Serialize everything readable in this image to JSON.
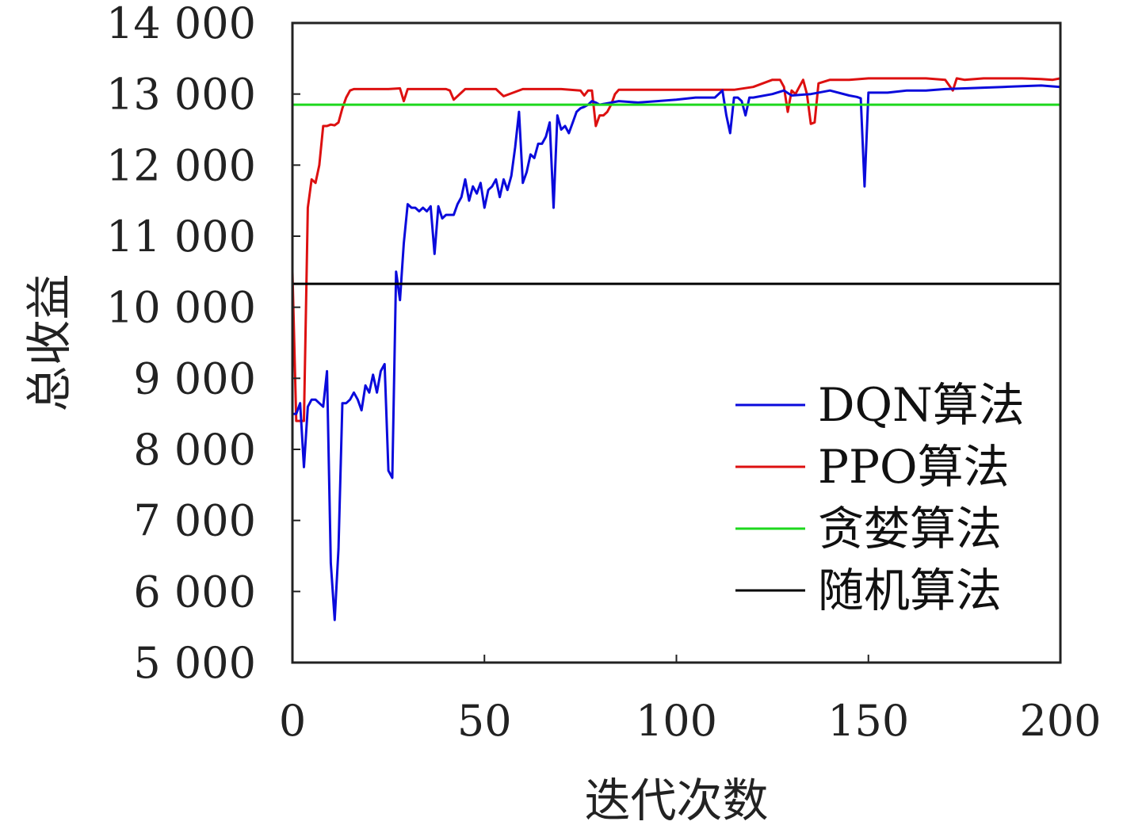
{
  "chart_data": {
    "type": "line",
    "title": "",
    "xlabel": "迭代次数",
    "ylabel": "总收益",
    "xlim": [
      0,
      200
    ],
    "ylim": [
      5000,
      14000
    ],
    "xticks": [
      0,
      50,
      100,
      150,
      200
    ],
    "xtick_labels": [
      "0",
      "50",
      "100",
      "150",
      "200"
    ],
    "yticks": [
      5000,
      6000,
      7000,
      8000,
      9000,
      10000,
      11000,
      12000,
      13000,
      14000
    ],
    "ytick_labels": [
      "5 000",
      "6 000",
      "7 000",
      "8 000",
      "9 000",
      "10 000",
      "11 000",
      "12 000",
      "13 000",
      "14 000"
    ],
    "grid": false,
    "legend_position": "lower-right",
    "series": [
      {
        "name": "DQN算法",
        "color": "#0a0adc",
        "x": [
          0,
          1,
          2,
          3,
          4,
          5,
          6,
          7,
          8,
          9,
          10,
          11,
          12,
          13,
          14,
          15,
          16,
          17,
          18,
          19,
          20,
          21,
          22,
          23,
          24,
          25,
          26,
          27,
          28,
          29,
          30,
          31,
          32,
          33,
          34,
          35,
          36,
          37,
          38,
          39,
          40,
          41,
          42,
          43,
          44,
          45,
          46,
          47,
          48,
          49,
          50,
          51,
          52,
          53,
          54,
          55,
          56,
          57,
          58,
          59,
          60,
          61,
          62,
          63,
          64,
          65,
          66,
          67,
          68,
          69,
          70,
          71,
          72,
          73,
          74,
          75,
          76,
          77,
          78,
          79,
          80,
          85,
          90,
          95,
          100,
          105,
          110,
          112,
          113,
          114,
          115,
          116,
          117,
          118,
          119,
          120,
          125,
          128,
          130,
          135,
          140,
          145,
          147,
          148,
          149,
          150,
          155,
          160,
          165,
          170,
          175,
          180,
          185,
          190,
          195,
          200
        ],
        "y": [
          8500,
          8500,
          8650,
          7750,
          8600,
          8700,
          8700,
          8650,
          8600,
          9100,
          6400,
          5600,
          6600,
          8650,
          8650,
          8700,
          8800,
          8700,
          8550,
          8900,
          8800,
          9050,
          8800,
          9100,
          9200,
          7700,
          7600,
          10500,
          10100,
          10900,
          11450,
          11400,
          11400,
          11350,
          11400,
          11350,
          11420,
          10750,
          11420,
          11250,
          11300,
          11300,
          11300,
          11450,
          11550,
          11800,
          11500,
          11700,
          11600,
          11750,
          11400,
          11650,
          11700,
          11800,
          11550,
          11800,
          11650,
          11850,
          12250,
          12750,
          11750,
          11900,
          12150,
          12100,
          12300,
          12300,
          12400,
          12600,
          11400,
          12700,
          12500,
          12550,
          12450,
          12600,
          12750,
          12800,
          12820,
          12850,
          12900,
          12880,
          12850,
          12900,
          12880,
          12900,
          12920,
          12950,
          12950,
          13050,
          12700,
          12450,
          12950,
          12950,
          12900,
          12700,
          12950,
          12950,
          13000,
          13050,
          12980,
          13000,
          13050,
          12980,
          12960,
          12940,
          11700,
          13020,
          13020,
          13050,
          13050,
          13070,
          13080,
          13090,
          13100,
          13110,
          13120,
          13100
        ]
      },
      {
        "name": "PPO算法",
        "color": "#dd1010",
        "x": [
          0,
          1,
          2,
          3,
          4,
          5,
          6,
          7,
          8,
          9,
          10,
          11,
          12,
          13,
          14,
          15,
          16,
          17,
          18,
          19,
          20,
          25,
          28,
          29,
          30,
          35,
          40,
          41,
          42,
          45,
          50,
          53,
          55,
          60,
          65,
          70,
          75,
          76,
          77,
          78,
          79,
          80,
          81,
          82,
          83,
          84,
          85,
          90,
          95,
          100,
          105,
          110,
          115,
          120,
          125,
          127,
          128,
          129,
          130,
          131,
          132,
          133,
          134,
          135,
          136,
          137,
          140,
          145,
          150,
          155,
          160,
          165,
          170,
          172,
          173,
          175,
          180,
          185,
          190,
          195,
          198,
          200
        ],
        "y": [
          10500,
          8400,
          8400,
          8400,
          11400,
          11800,
          11750,
          12000,
          12550,
          12550,
          12570,
          12560,
          12600,
          12800,
          12950,
          13050,
          13070,
          13070,
          13070,
          13070,
          13070,
          13070,
          13080,
          12900,
          13070,
          13070,
          13070,
          13050,
          12920,
          13070,
          13070,
          13070,
          12970,
          13070,
          13070,
          13070,
          13050,
          12980,
          13050,
          13050,
          12550,
          12700,
          12700,
          12750,
          12850,
          13000,
          13060,
          13060,
          13060,
          13060,
          13060,
          13060,
          13060,
          13100,
          13200,
          13200,
          13100,
          12750,
          13050,
          13000,
          13100,
          13200,
          13000,
          12580,
          12600,
          13150,
          13200,
          13200,
          13220,
          13220,
          13220,
          13220,
          13200,
          13050,
          13220,
          13200,
          13220,
          13220,
          13220,
          13210,
          13200,
          13220
        ]
      },
      {
        "name": "贪婪算法",
        "color": "#1ed81e",
        "x": [
          0,
          200
        ],
        "y": [
          12850,
          12850
        ]
      },
      {
        "name": "随机算法",
        "color": "#000000",
        "x": [
          0,
          200
        ],
        "y": [
          10330,
          10330
        ]
      }
    ]
  }
}
